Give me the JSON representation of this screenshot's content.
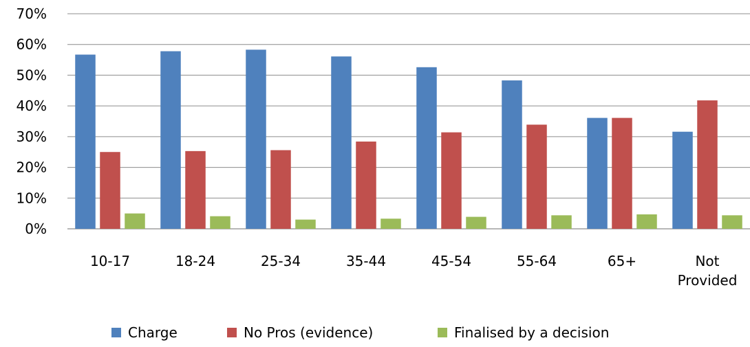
{
  "chart_data": {
    "type": "bar",
    "categories": [
      "10-17",
      "18-24",
      "25-34",
      "35-44",
      "45-54",
      "55-64",
      "65+",
      "Not Provided"
    ],
    "category_lines": [
      [
        "10-17"
      ],
      [
        "18-24"
      ],
      [
        "25-34"
      ],
      [
        "35-44"
      ],
      [
        "45-54"
      ],
      [
        "55-64"
      ],
      [
        "65+"
      ],
      [
        "Not",
        "Provided"
      ]
    ],
    "series": [
      {
        "name": "Charge",
        "color": "#4f81bd",
        "values": [
          56.7,
          57.8,
          58.3,
          56.1,
          52.6,
          48.3,
          36.1,
          31.6
        ]
      },
      {
        "name": "No Pros (evidence)",
        "color": "#c0504d",
        "values": [
          25.0,
          25.3,
          25.6,
          28.4,
          31.4,
          33.9,
          36.1,
          41.8
        ]
      },
      {
        "name": "Finalised by a decision",
        "color": "#9bbb59",
        "values": [
          5.0,
          4.1,
          3.0,
          3.3,
          3.9,
          4.4,
          4.7,
          4.4
        ]
      }
    ],
    "ylim": [
      0,
      70
    ],
    "yticks": [
      0,
      10,
      20,
      30,
      40,
      50,
      60,
      70
    ],
    "ytick_labels": [
      "0%",
      "10%",
      "20%",
      "30%",
      "40%",
      "50%",
      "60%",
      "70%"
    ],
    "title": "",
    "xlabel": "",
    "ylabel": "",
    "grid": true,
    "legend_position": "bottom"
  }
}
